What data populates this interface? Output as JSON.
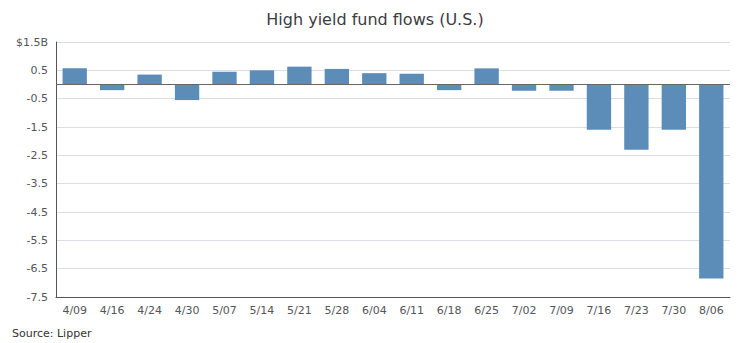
{
  "chart_data": {
    "type": "bar",
    "title": "High yield fund flows (U.S.)",
    "categories": [
      "4/09",
      "4/16",
      "4/24",
      "4/30",
      "5/07",
      "5/14",
      "5/21",
      "5/28",
      "6/04",
      "6/11",
      "6/18",
      "6/25",
      "7/02",
      "7/09",
      "7/16",
      "7/23",
      "7/30",
      "8/06"
    ],
    "values": [
      0.57,
      -0.2,
      0.35,
      -0.55,
      0.45,
      0.5,
      0.63,
      0.55,
      0.4,
      0.38,
      -0.2,
      0.57,
      -0.22,
      -0.22,
      -1.6,
      -2.3,
      -1.6,
      -6.85
    ],
    "color": "#5b8db8",
    "ylim": [
      -7.5,
      1.5
    ],
    "yticks": [
      {
        "value": 1.5,
        "label": "$1.5B"
      },
      0.5,
      -0.5,
      -1.5,
      -2.5,
      -3.5,
      -4.5,
      -5.5,
      -6.5,
      -7.5
    ],
    "grid": true,
    "annotations": [
      "Source: Lipper"
    ]
  }
}
